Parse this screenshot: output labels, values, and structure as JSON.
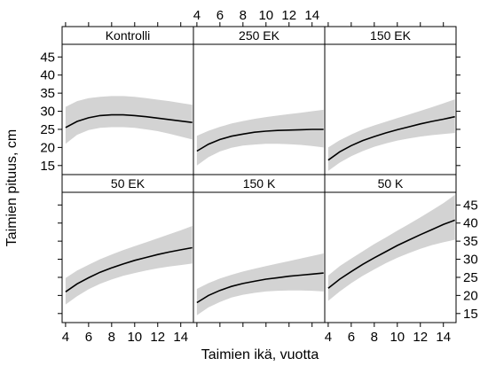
{
  "chart_data": {
    "type": "line",
    "xlabel": "Taimien ikä, vuotta",
    "ylabel": "Taimien pituus, cm",
    "xlim": [
      3.7,
      15.1
    ],
    "ylim": [
      12.5,
      48.5
    ],
    "x_ticks": [
      4,
      6,
      8,
      10,
      12,
      14
    ],
    "y_ticks": [
      15,
      20,
      25,
      30,
      35,
      40,
      45
    ],
    "band_color": "#d3d3d3",
    "line_color": "#000000",
    "panels": [
      {
        "name": "Kontrolli",
        "x": [
          4,
          5,
          6,
          7,
          8,
          9,
          10,
          11,
          12,
          13,
          14,
          15
        ],
        "fit": [
          25.5,
          27.2,
          28.2,
          28.8,
          29.0,
          29.0,
          28.8,
          28.5,
          28.1,
          27.7,
          27.3,
          26.9
        ],
        "lower": [
          21.0,
          23.5,
          24.8,
          25.4,
          25.6,
          25.6,
          25.4,
          25.0,
          24.5,
          23.8,
          23.0,
          22.2
        ],
        "upper": [
          31.2,
          32.8,
          33.6,
          34.0,
          34.2,
          34.2,
          34.0,
          33.6,
          33.2,
          32.8,
          32.3,
          31.8
        ]
      },
      {
        "name": "250 EK",
        "x": [
          4,
          5,
          6,
          7,
          8,
          9,
          10,
          11,
          12,
          13,
          14,
          15
        ],
        "fit": [
          19.0,
          20.9,
          22.2,
          23.1,
          23.7,
          24.2,
          24.5,
          24.7,
          24.8,
          24.9,
          25.0,
          25.0
        ],
        "lower": [
          15.0,
          17.3,
          18.9,
          19.9,
          20.5,
          20.8,
          21.0,
          21.0,
          20.9,
          20.7,
          20.4,
          20.0
        ],
        "upper": [
          23.2,
          24.6,
          25.7,
          26.6,
          27.3,
          27.9,
          28.4,
          28.8,
          29.2,
          29.6,
          30.0,
          30.4
        ]
      },
      {
        "name": "150 EK",
        "x": [
          4,
          5,
          6,
          7,
          8,
          9,
          10,
          11,
          12,
          13,
          14,
          15
        ],
        "fit": [
          16.5,
          18.8,
          20.5,
          21.9,
          23.0,
          24.0,
          24.9,
          25.7,
          26.5,
          27.2,
          27.8,
          28.5
        ],
        "lower": [
          13.5,
          15.8,
          17.6,
          19.0,
          20.2,
          21.1,
          21.9,
          22.5,
          23.0,
          23.4,
          23.7,
          24.0
        ],
        "upper": [
          20.0,
          22.0,
          23.6,
          25.0,
          26.1,
          27.1,
          28.1,
          29.1,
          30.1,
          31.1,
          32.2,
          33.3
        ]
      },
      {
        "name": "50 EK",
        "x": [
          4,
          5,
          6,
          7,
          8,
          9,
          10,
          11,
          12,
          13,
          14,
          15
        ],
        "fit": [
          21.0,
          23.2,
          24.9,
          26.4,
          27.6,
          28.7,
          29.7,
          30.5,
          31.3,
          32.0,
          32.6,
          33.2
        ],
        "lower": [
          17.5,
          19.8,
          21.7,
          23.2,
          24.4,
          25.4,
          26.2,
          26.9,
          27.5,
          28.0,
          28.4,
          28.8
        ],
        "upper": [
          24.8,
          26.9,
          28.5,
          30.0,
          31.3,
          32.5,
          33.6,
          34.7,
          35.8,
          36.9,
          38.0,
          39.2
        ]
      },
      {
        "name": "150 K",
        "x": [
          4,
          5,
          6,
          7,
          8,
          9,
          10,
          11,
          12,
          13,
          14,
          15
        ],
        "fit": [
          18.0,
          20.0,
          21.4,
          22.5,
          23.3,
          23.9,
          24.5,
          24.9,
          25.3,
          25.6,
          25.9,
          26.2
        ],
        "lower": [
          14.5,
          16.7,
          18.2,
          19.4,
          20.2,
          20.7,
          21.1,
          21.3,
          21.4,
          21.4,
          21.3,
          21.1
        ],
        "upper": [
          21.8,
          23.4,
          24.7,
          25.7,
          26.6,
          27.4,
          28.1,
          28.8,
          29.5,
          30.2,
          30.9,
          31.6
        ]
      },
      {
        "name": "50 K",
        "x": [
          4,
          5,
          6,
          7,
          8,
          9,
          10,
          11,
          12,
          13,
          14,
          15
        ],
        "fit": [
          22.0,
          24.5,
          26.6,
          28.6,
          30.4,
          32.1,
          33.8,
          35.3,
          36.8,
          38.2,
          39.6,
          40.8
        ],
        "lower": [
          18.5,
          21.1,
          23.4,
          25.4,
          27.2,
          28.9,
          30.4,
          31.7,
          32.9,
          33.9,
          34.7,
          35.4
        ],
        "upper": [
          25.5,
          28.1,
          30.2,
          32.2,
          34.2,
          36.0,
          37.9,
          39.7,
          41.6,
          43.5,
          45.5,
          47.8
        ]
      }
    ]
  }
}
